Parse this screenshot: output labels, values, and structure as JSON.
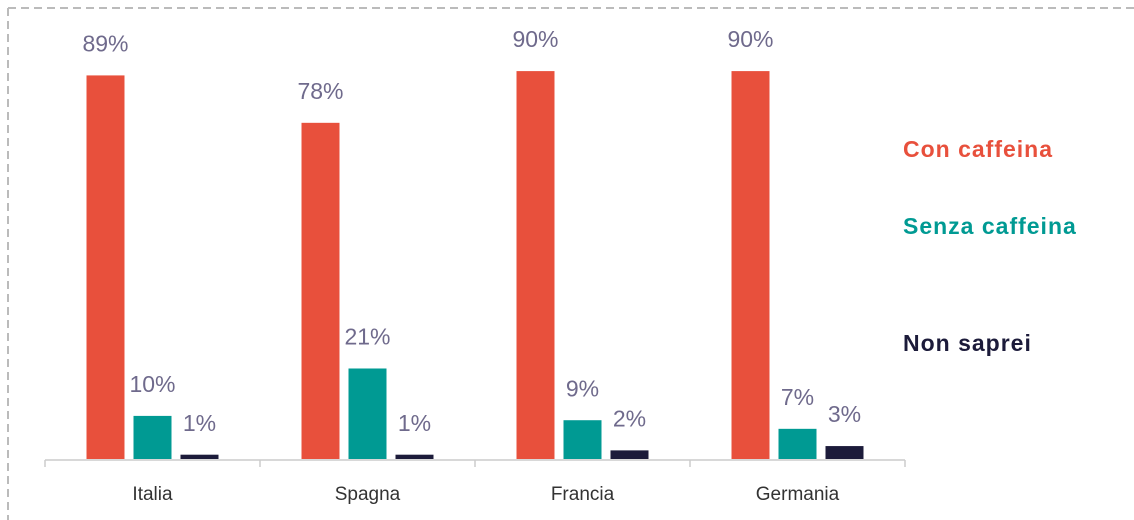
{
  "chart_data": {
    "type": "bar",
    "categories": [
      "Italia",
      "Spagna",
      "Francia",
      "Germania"
    ],
    "series": [
      {
        "name": "Con caffeina",
        "color": "#e8503c",
        "values": [
          89,
          78,
          90,
          90
        ],
        "value_labels": [
          "89%",
          "78%",
          "90%",
          "90%"
        ]
      },
      {
        "name": "Senza caffeina",
        "color": "#009a93",
        "values": [
          10,
          21,
          9,
          7
        ],
        "value_labels": [
          "10%",
          "21%",
          "9%",
          "7%"
        ]
      },
      {
        "name": "Non saprei",
        "color": "#1c1b3a",
        "values": [
          1,
          1,
          2,
          3
        ],
        "value_labels": [
          "1%",
          "1%",
          "2%",
          "3%"
        ]
      }
    ],
    "ylim": [
      0,
      100
    ]
  }
}
